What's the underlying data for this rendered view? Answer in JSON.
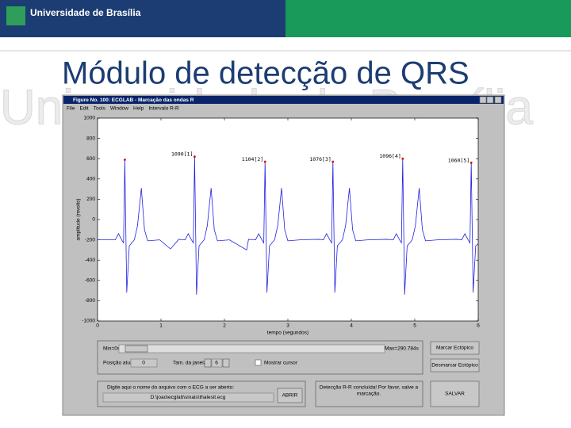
{
  "header": {
    "name": "Universidade de Brasília"
  },
  "title": "Módulo de detecção de QRS",
  "window": {
    "title": "Figure No. 100: ECGLAB - Marcação das ondas R",
    "menu": [
      "File",
      "Edit",
      "Tools",
      "Window",
      "Help",
      "Intervalo R-R"
    ],
    "controls": {
      "min": "Min=0s",
      "max": "Max=290.784s",
      "position_label": "Posição atual:",
      "position_value": "0",
      "window_label": "Tam. da janela:",
      "window_value": "6",
      "cursor": "Mostrar cursor",
      "mark": "Marcar Ectópico",
      "unmark": "Desmarcar Ectópico",
      "file_prompt": "Digite aqui o nome do arquivo com o ECG a ser aberto:",
      "file_path": "D:\\joao\\ecglab\\sinais\\thalesit.ecg",
      "open": "ABRIR",
      "status": [
        "Detecção R-R concluída! Por favor, salve a",
        "marcação."
      ],
      "save": "SALVAR"
    }
  },
  "chart_data": {
    "type": "line",
    "xlabel": "tempo (segundos)",
    "ylabel": "amplitude (mvolts)",
    "xlim": [
      0,
      6
    ],
    "ylim": [
      -1000,
      1000
    ],
    "xticks": [
      0,
      1,
      2,
      3,
      4,
      5,
      6
    ],
    "yticks": [
      -1000,
      -800,
      -600,
      -400,
      -200,
      0,
      200,
      400,
      600,
      800,
      1000
    ],
    "color": "#2020e0",
    "x": [
      0,
      0.28,
      0.33,
      0.38,
      0.41,
      0.43,
      0.46,
      0.5,
      0.58,
      0.63,
      0.69,
      0.74,
      0.79,
      0.98,
      1.15,
      1.28,
      1.38,
      1.43,
      1.48,
      1.51,
      1.53,
      1.56,
      1.6,
      1.68,
      1.73,
      1.79,
      1.84,
      1.89,
      2.08,
      2.35,
      2.38,
      2.49,
      2.54,
      2.59,
      2.62,
      2.64,
      2.67,
      2.71,
      2.79,
      2.84,
      2.9,
      2.95,
      3.0,
      3.19,
      3.49,
      3.56,
      3.61,
      3.66,
      3.69,
      3.71,
      3.74,
      3.78,
      3.86,
      3.91,
      3.97,
      4.02,
      4.07,
      4.26,
      4.56,
      4.66,
      4.71,
      4.76,
      4.79,
      4.81,
      4.84,
      4.88,
      4.96,
      5.01,
      5.07,
      5.12,
      5.17,
      5.36,
      5.66,
      5.74,
      5.79,
      5.84,
      5.87,
      5.89,
      5.92,
      5.96,
      6.0
    ],
    "values": [
      -200,
      -200,
      -140,
      -200,
      -230,
      590,
      -720,
      -260,
      -200,
      -60,
      310,
      -100,
      -210,
      -200,
      -290,
      -195,
      -200,
      -140,
      -200,
      -230,
      620,
      -740,
      -260,
      -200,
      -60,
      310,
      -100,
      -210,
      -200,
      -300,
      -195,
      -200,
      -140,
      -200,
      -230,
      570,
      -720,
      -260,
      -200,
      -60,
      310,
      -100,
      -210,
      -200,
      -195,
      -200,
      -140,
      -200,
      -230,
      570,
      -720,
      -260,
      -200,
      -60,
      310,
      -100,
      -210,
      -200,
      -195,
      -200,
      -140,
      -200,
      -230,
      600,
      -740,
      -260,
      -200,
      -60,
      310,
      -100,
      -210,
      -200,
      -195,
      -200,
      -140,
      -200,
      -230,
      560,
      -720,
      -260,
      -240
    ],
    "markers": {
      "color": "#e00000",
      "x": [
        0.43,
        1.53,
        2.64,
        3.71,
        4.81,
        5.89
      ],
      "values": [
        590,
        620,
        570,
        570,
        600,
        560
      ],
      "labels": [
        null,
        "1090[1]",
        "1104[2]",
        "1076[3]",
        "1096[4]",
        "1060[5]"
      ]
    }
  }
}
